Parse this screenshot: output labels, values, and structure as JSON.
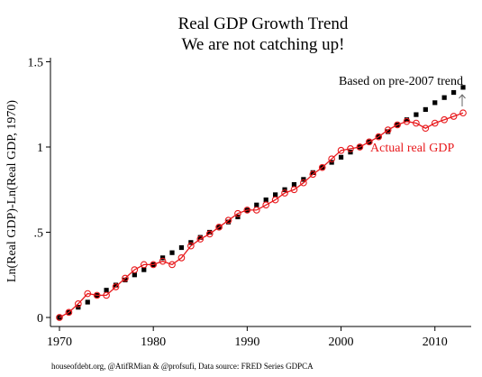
{
  "chart_data": {
    "type": "scatter",
    "title": "Real GDP Growth Trend",
    "subtitle": "We are not catching up!",
    "xlabel": "",
    "ylabel": "Ln(Real GDP)-Ln(Real GDP, 1970)",
    "xlim": [
      1970,
      2013
    ],
    "ylim": [
      0,
      1.55
    ],
    "x_ticks": [
      1970,
      1980,
      1990,
      2000,
      2010
    ],
    "y_ticks": [
      0,
      0.5,
      1,
      1.5
    ],
    "y_tick_labels": [
      "0",
      ".5",
      "1",
      "1.5"
    ],
    "grid": false,
    "series": [
      {
        "name": "Based on pre-2007 trend",
        "marker": "square",
        "color": "#000000",
        "x": [
          1970,
          1971,
          1972,
          1973,
          1974,
          1975,
          1976,
          1977,
          1978,
          1979,
          1980,
          1981,
          1982,
          1983,
          1984,
          1985,
          1986,
          1987,
          1988,
          1989,
          1990,
          1991,
          1992,
          1993,
          1994,
          1995,
          1996,
          1997,
          1998,
          1999,
          2000,
          2001,
          2002,
          2003,
          2004,
          2005,
          2006,
          2007,
          2008,
          2009,
          2010,
          2011,
          2012,
          2013
        ],
        "values": [
          0.0,
          0.03,
          0.06,
          0.09,
          0.13,
          0.16,
          0.19,
          0.22,
          0.25,
          0.28,
          0.31,
          0.35,
          0.38,
          0.41,
          0.44,
          0.47,
          0.5,
          0.53,
          0.56,
          0.59,
          0.63,
          0.66,
          0.69,
          0.72,
          0.75,
          0.78,
          0.81,
          0.85,
          0.88,
          0.91,
          0.94,
          0.97,
          1.0,
          1.03,
          1.06,
          1.09,
          1.13,
          1.16,
          1.19,
          1.22,
          1.26,
          1.29,
          1.32,
          1.35
        ]
      },
      {
        "name": "Actual real GDP",
        "marker": "circle-line",
        "color": "#e8191c",
        "x": [
          1970,
          1971,
          1972,
          1973,
          1974,
          1975,
          1976,
          1977,
          1978,
          1979,
          1980,
          1981,
          1982,
          1983,
          1984,
          1985,
          1986,
          1987,
          1988,
          1989,
          1990,
          1991,
          1992,
          1993,
          1994,
          1995,
          1996,
          1997,
          1998,
          1999,
          2000,
          2001,
          2002,
          2003,
          2004,
          2005,
          2006,
          2007,
          2008,
          2009,
          2010,
          2011,
          2012,
          2013
        ],
        "values": [
          0.0,
          0.03,
          0.08,
          0.14,
          0.13,
          0.13,
          0.18,
          0.23,
          0.28,
          0.31,
          0.31,
          0.33,
          0.31,
          0.35,
          0.42,
          0.46,
          0.49,
          0.53,
          0.57,
          0.61,
          0.63,
          0.63,
          0.66,
          0.69,
          0.73,
          0.75,
          0.79,
          0.84,
          0.88,
          0.93,
          0.98,
          0.99,
          1.0,
          1.03,
          1.06,
          1.1,
          1.13,
          1.15,
          1.14,
          1.11,
          1.14,
          1.16,
          1.18,
          1.2
        ]
      }
    ],
    "annotations": [
      {
        "text": "Based on pre-2007 trend",
        "color": "#000000"
      },
      {
        "text": "Actual real GDP",
        "color": "#e8191c"
      }
    ],
    "source": "houseofdebt.org, @AtifRMian & @profsufi, Data source: FRED Series GDPCA"
  }
}
